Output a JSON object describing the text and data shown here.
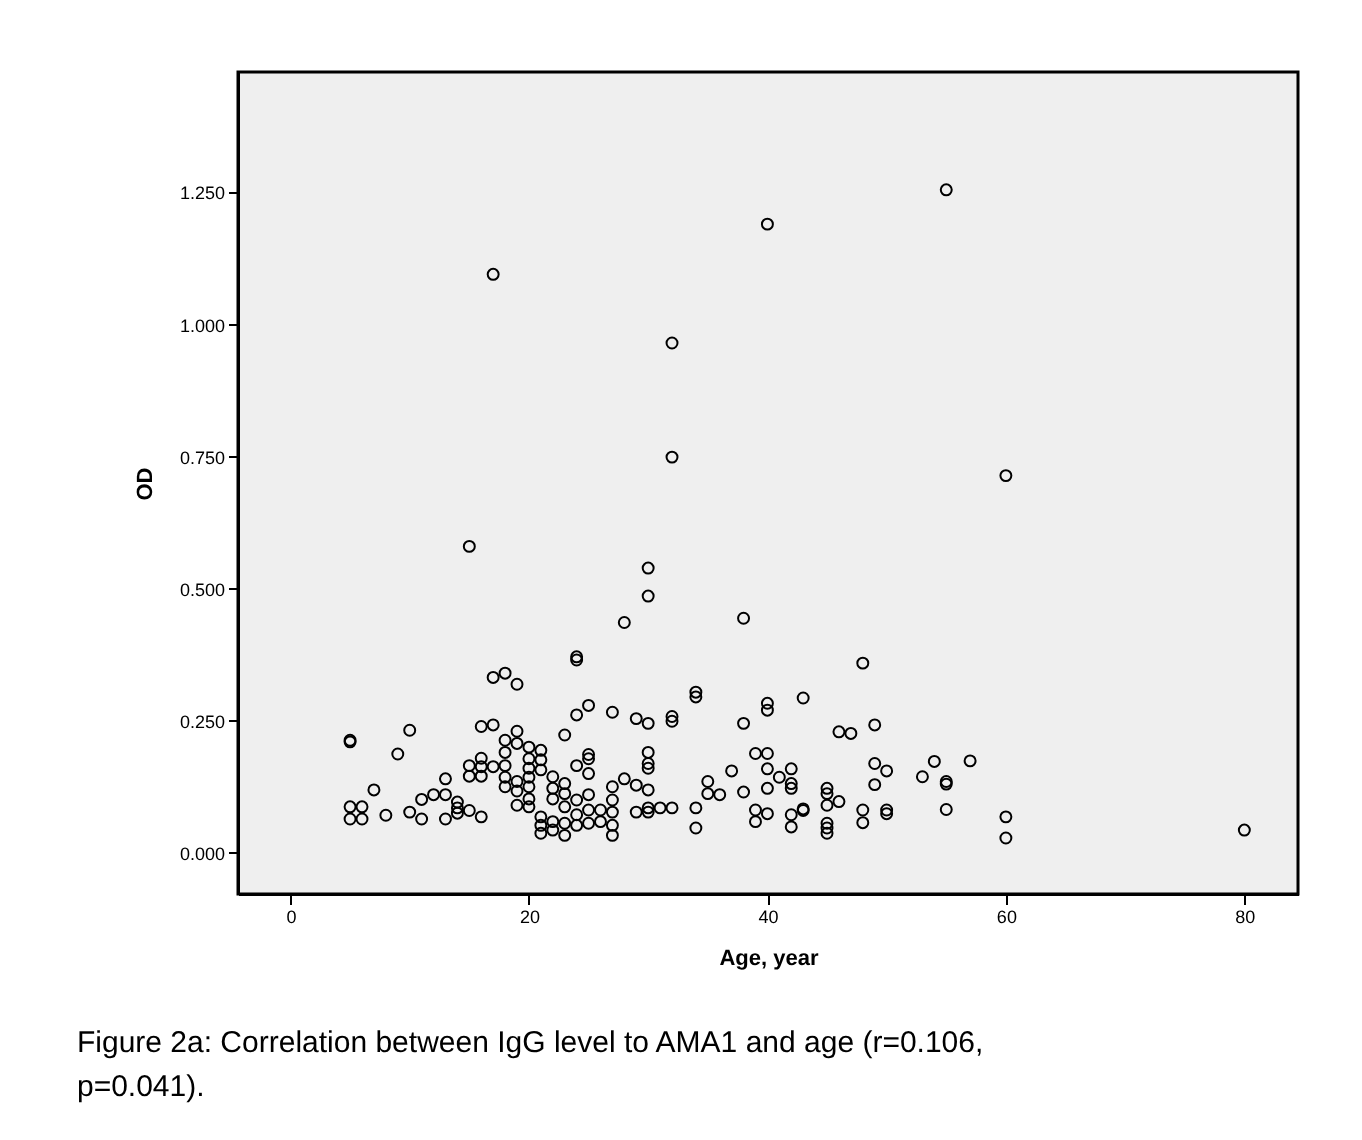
{
  "chart_data": {
    "type": "scatter",
    "xlabel": "Age, year",
    "ylabel": "OD",
    "xlim": [
      -4.4,
      84.5
    ],
    "ylim": [
      -0.078,
      1.478
    ],
    "xticks": [
      0,
      20,
      40,
      60,
      80
    ],
    "yticks": [
      {
        "value": 0,
        "label": "0.000"
      },
      {
        "value": 0.25,
        "label": "0.250"
      },
      {
        "value": 0.5,
        "label": "0.500"
      },
      {
        "value": 0.75,
        "label": "0.750"
      },
      {
        "value": 1,
        "label": "1.000"
      },
      {
        "value": 1.25,
        "label": "1.250"
      }
    ],
    "grid": false,
    "legend": false,
    "marker": "circle",
    "annotations": [
      "Figure 2a: Correlation between IgG level to AMA1 and age (r=0.106, p=0.041)."
    ],
    "series": [
      {
        "color": "#000000",
        "x": [
          17,
          40,
          55,
          32,
          32,
          15,
          30,
          30,
          60,
          5,
          5,
          5,
          6,
          5,
          6,
          7,
          8,
          9,
          10,
          10,
          11,
          11,
          12,
          13,
          13,
          13,
          14,
          14,
          14,
          15,
          15,
          15,
          16,
          16,
          17,
          16,
          16,
          16,
          17,
          18,
          19,
          17,
          18,
          18,
          18,
          18,
          18,
          19,
          19,
          19,
          19,
          19,
          20,
          20,
          20,
          20,
          20,
          20,
          20,
          21,
          21,
          21,
          21,
          21,
          21,
          22,
          22,
          22,
          22,
          22,
          23,
          23,
          23,
          23,
          23,
          23,
          24,
          24,
          24,
          24,
          24,
          24,
          24,
          25,
          25,
          25,
          25,
          25,
          25,
          25,
          26,
          26,
          27,
          27,
          27,
          27,
          27,
          27,
          28,
          28,
          29,
          29,
          29,
          30,
          30,
          30,
          30,
          30,
          30,
          30,
          31,
          32,
          32,
          32,
          34,
          34,
          34,
          34,
          35,
          35,
          36,
          37,
          38,
          38,
          38,
          39,
          39,
          39,
          40,
          40,
          48,
          43,
          46,
          47,
          49,
          40,
          40,
          42,
          41,
          40,
          42,
          42,
          45,
          45,
          46,
          45,
          40,
          42,
          42,
          43,
          43,
          45,
          45,
          45,
          48,
          48,
          49,
          49,
          50,
          50,
          50,
          53,
          54,
          55,
          55,
          55,
          57,
          60,
          60,
          80
        ],
        "values": [
          1.095,
          1.19,
          1.255,
          0.965,
          0.749,
          0.58,
          0.539,
          0.486,
          0.714,
          0.213,
          0.21,
          0.087,
          0.087,
          0.064,
          0.064,
          0.119,
          0.071,
          0.187,
          0.232,
          0.077,
          0.101,
          0.064,
          0.11,
          0.14,
          0.11,
          0.064,
          0.096,
          0.075,
          0.085,
          0.08,
          0.165,
          0.145,
          0.068,
          0.239,
          0.242,
          0.179,
          0.163,
          0.145,
          0.332,
          0.34,
          0.319,
          0.163,
          0.213,
          0.19,
          0.165,
          0.143,
          0.125,
          0.23,
          0.207,
          0.135,
          0.117,
          0.09,
          0.2,
          0.178,
          0.16,
          0.143,
          0.125,
          0.102,
          0.087,
          0.194,
          0.176,
          0.157,
          0.068,
          0.037,
          0.052,
          0.144,
          0.122,
          0.102,
          0.043,
          0.059,
          0.223,
          0.131,
          0.112,
          0.087,
          0.056,
          0.033,
          0.371,
          0.365,
          0.261,
          0.165,
          0.1,
          0.072,
          0.052,
          0.279,
          0.186,
          0.178,
          0.15,
          0.11,
          0.081,
          0.056,
          0.081,
          0.059,
          0.266,
          0.125,
          0.1,
          0.077,
          0.052,
          0.033,
          0.436,
          0.14,
          0.254,
          0.128,
          0.077,
          0.245,
          0.19,
          0.169,
          0.16,
          0.119,
          0.077,
          0.085,
          0.085,
          0.258,
          0.249,
          0.085,
          0.304,
          0.295,
          0.085,
          0.047,
          0.135,
          0.112,
          0.11,
          0.155,
          0.444,
          0.245,
          0.115,
          0.188,
          0.081,
          0.059,
          0.283,
          0.27,
          0.359,
          0.293,
          0.229,
          0.226,
          0.242,
          0.188,
          0.159,
          0.159,
          0.143,
          0.122,
          0.131,
          0.122,
          0.122,
          0.112,
          0.097,
          0.09,
          0.074,
          0.072,
          0.049,
          0.083,
          0.08,
          0.056,
          0.047,
          0.037,
          0.081,
          0.057,
          0.169,
          0.129,
          0.155,
          0.081,
          0.074,
          0.144,
          0.173,
          0.135,
          0.13,
          0.082,
          0.174,
          0.068,
          0.028,
          0.043
        ]
      }
    ]
  }
}
